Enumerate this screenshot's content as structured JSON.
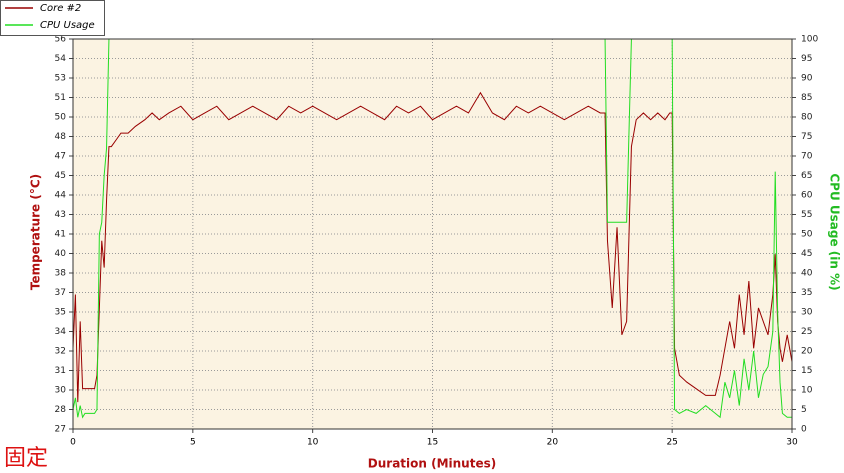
{
  "chart_data": {
    "type": "line",
    "x_label": "Duration (Minutes)",
    "y_label": "Temperature (°C)",
    "y2_label": "CPU Usage (in %)",
    "watermark": "固定",
    "legend": "top-left",
    "grid": true,
    "background": "#fbf3e2",
    "xlim": [
      0,
      30
    ],
    "xticks": [
      0,
      5,
      10,
      15,
      20,
      25,
      30
    ],
    "ylim": [
      27,
      56
    ],
    "yticks": [
      {
        "value": 27,
        "label": "27"
      },
      {
        "value": 28.45,
        "label": "28"
      },
      {
        "value": 29.9,
        "label": "30"
      },
      {
        "value": 31.35,
        "label": "31"
      },
      {
        "value": 32.8,
        "label": "32"
      },
      {
        "value": 34.25,
        "label": "34"
      },
      {
        "value": 35.7,
        "label": "35"
      },
      {
        "value": 37.15,
        "label": "37"
      },
      {
        "value": 38.6,
        "label": "38"
      },
      {
        "value": 40.05,
        "label": "40"
      },
      {
        "value": 41.5,
        "label": "41"
      },
      {
        "value": 42.95,
        "label": "43"
      },
      {
        "value": 44.4,
        "label": "44"
      },
      {
        "value": 45.85,
        "label": "45"
      },
      {
        "value": 47.3,
        "label": "47"
      },
      {
        "value": 48.75,
        "label": "48"
      },
      {
        "value": 50.2,
        "label": "50"
      },
      {
        "value": 51.65,
        "label": "51"
      },
      {
        "value": 53.1,
        "label": "53"
      },
      {
        "value": 54.55,
        "label": "54"
      },
      {
        "value": 56,
        "label": "56"
      }
    ],
    "y2lim": [
      0,
      100
    ],
    "y2ticks": [
      0,
      5,
      10,
      15,
      20,
      25,
      30,
      35,
      40,
      45,
      50,
      55,
      60,
      65,
      70,
      75,
      80,
      85,
      90,
      95,
      100
    ],
    "x": [
      0,
      0.1,
      0.2,
      0.3,
      0.4,
      0.5,
      0.7,
      0.9,
      1.0,
      1.1,
      1.2,
      1.3,
      1.4,
      1.5,
      1.6,
      1.8,
      2.0,
      2.3,
      2.6,
      3.0,
      3.3,
      3.6,
      4,
      4.5,
      5,
      5.5,
      6,
      6.5,
      7,
      7.5,
      8,
      8.5,
      9,
      9.5,
      10,
      10.5,
      11,
      11.5,
      12,
      12.5,
      13,
      13.5,
      14,
      14.5,
      15,
      15.5,
      16,
      16.5,
      17,
      17.5,
      18,
      18.5,
      19,
      19.5,
      20,
      20.5,
      21,
      21.5,
      22,
      22.2,
      22.3,
      22.5,
      22.7,
      22.9,
      23.1,
      23.3,
      23.5,
      23.8,
      24.1,
      24.4,
      24.7,
      24.9,
      25.0,
      25.1,
      25.3,
      25.6,
      26.0,
      26.4,
      26.8,
      27.0,
      27.2,
      27.4,
      27.6,
      27.8,
      28.0,
      28.2,
      28.4,
      28.6,
      28.8,
      29.0,
      29.2,
      29.3,
      29.4,
      29.5,
      29.6,
      29.8,
      30.0
    ],
    "series": [
      {
        "name": "Core #2",
        "color": "#990000",
        "axis": "y",
        "values": [
          33,
          37,
          29,
          35,
          30,
          30,
          30,
          30,
          31,
          36,
          41,
          39,
          44,
          48,
          48,
          48.5,
          49,
          49,
          49.5,
          50,
          50.5,
          50,
          50.5,
          51,
          50,
          50.5,
          51,
          50,
          50.5,
          51,
          50.5,
          50,
          51,
          50.5,
          51,
          50.5,
          50,
          50.5,
          51,
          50.5,
          50,
          51,
          50.5,
          51,
          50,
          50.5,
          51,
          50.5,
          52,
          50.5,
          50,
          51,
          50.5,
          51,
          50.5,
          50,
          50.5,
          51,
          50.5,
          50.5,
          41,
          36,
          42,
          34,
          35,
          48,
          50,
          50.5,
          50,
          50.5,
          50,
          50.5,
          50.5,
          33,
          31,
          30.5,
          30,
          29.5,
          29.5,
          31,
          33,
          35,
          33,
          37,
          34,
          38,
          33,
          36,
          35,
          34,
          37,
          40,
          35,
          33,
          32,
          34,
          32
        ]
      },
      {
        "name": "CPU Usage",
        "color": "#22dd22",
        "axis": "y2",
        "values": [
          5,
          8,
          3,
          6,
          3,
          4,
          4,
          4,
          5,
          50,
          53,
          65,
          72,
          100,
          100,
          100,
          100,
          100,
          100,
          100,
          100,
          100,
          100,
          100,
          100,
          100,
          100,
          100,
          100,
          100,
          100,
          100,
          100,
          100,
          100,
          100,
          100,
          100,
          100,
          100,
          100,
          100,
          100,
          100,
          100,
          100,
          100,
          100,
          100,
          100,
          100,
          100,
          100,
          100,
          100,
          100,
          100,
          100,
          100,
          100,
          53,
          53,
          53,
          53,
          53,
          100,
          100,
          100,
          100,
          100,
          100,
          100,
          100,
          5,
          4,
          5,
          4,
          6,
          4,
          3,
          12,
          8,
          15,
          6,
          18,
          10,
          20,
          8,
          14,
          16,
          25,
          66,
          30,
          12,
          4,
          3,
          3
        ]
      }
    ]
  }
}
